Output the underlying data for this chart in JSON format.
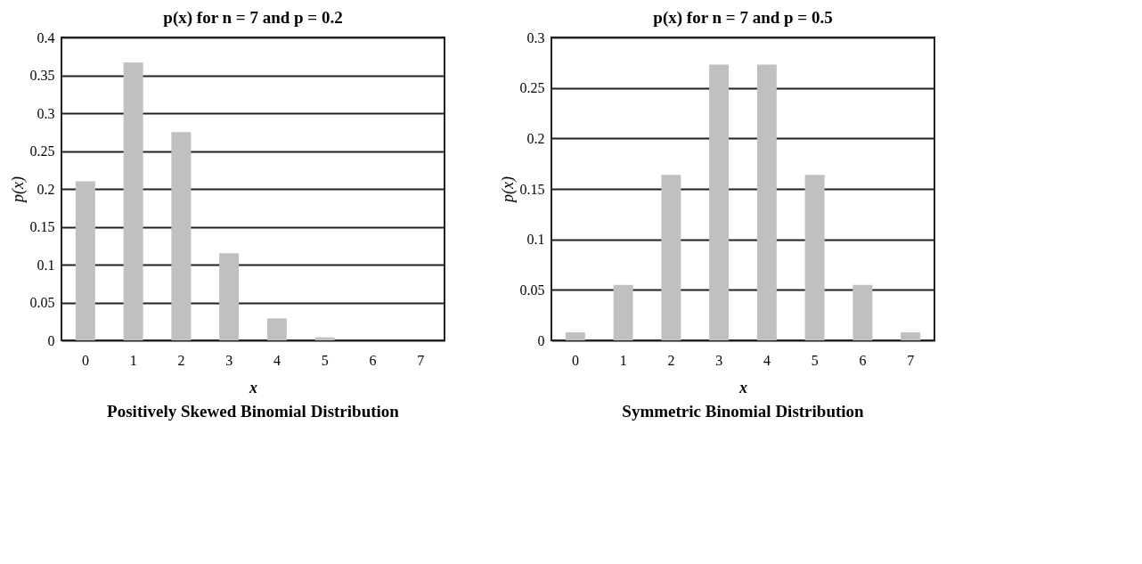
{
  "chart_data": [
    {
      "type": "bar",
      "title": "p(x) for n = 7 and p = 0.2",
      "xlabel": "x",
      "ylabel": "p(x)",
      "annotations": [
        "Positively Skewed Binomial Distribution"
      ],
      "categories": [
        "0",
        "1",
        "2",
        "3",
        "4",
        "5",
        "6",
        "7"
      ],
      "values": [
        0.21,
        0.367,
        0.275,
        0.115,
        0.029,
        0.004,
        0,
        0
      ],
      "color": "#c0c0c0",
      "ylim": [
        0,
        0.4
      ],
      "yticks": [
        0,
        0.05,
        0.1,
        0.15,
        0.2,
        0.25,
        0.3,
        0.35,
        0.4
      ],
      "grid": "y"
    },
    {
      "type": "bar",
      "title": "p(x) for n = 7 and p = 0.5",
      "xlabel": "x",
      "ylabel": "p(x)",
      "annotations": [
        "Symmetric Binomial Distribution"
      ],
      "categories": [
        "0",
        "1",
        "2",
        "3",
        "4",
        "5",
        "6",
        "7"
      ],
      "values": [
        0.008,
        0.055,
        0.164,
        0.273,
        0.273,
        0.164,
        0.055,
        0.008
      ],
      "color": "#c0c0c0",
      "ylim": [
        0,
        0.3
      ],
      "yticks": [
        0,
        0.05,
        0.1,
        0.15,
        0.2,
        0.25,
        0.3
      ],
      "grid": "y"
    }
  ]
}
